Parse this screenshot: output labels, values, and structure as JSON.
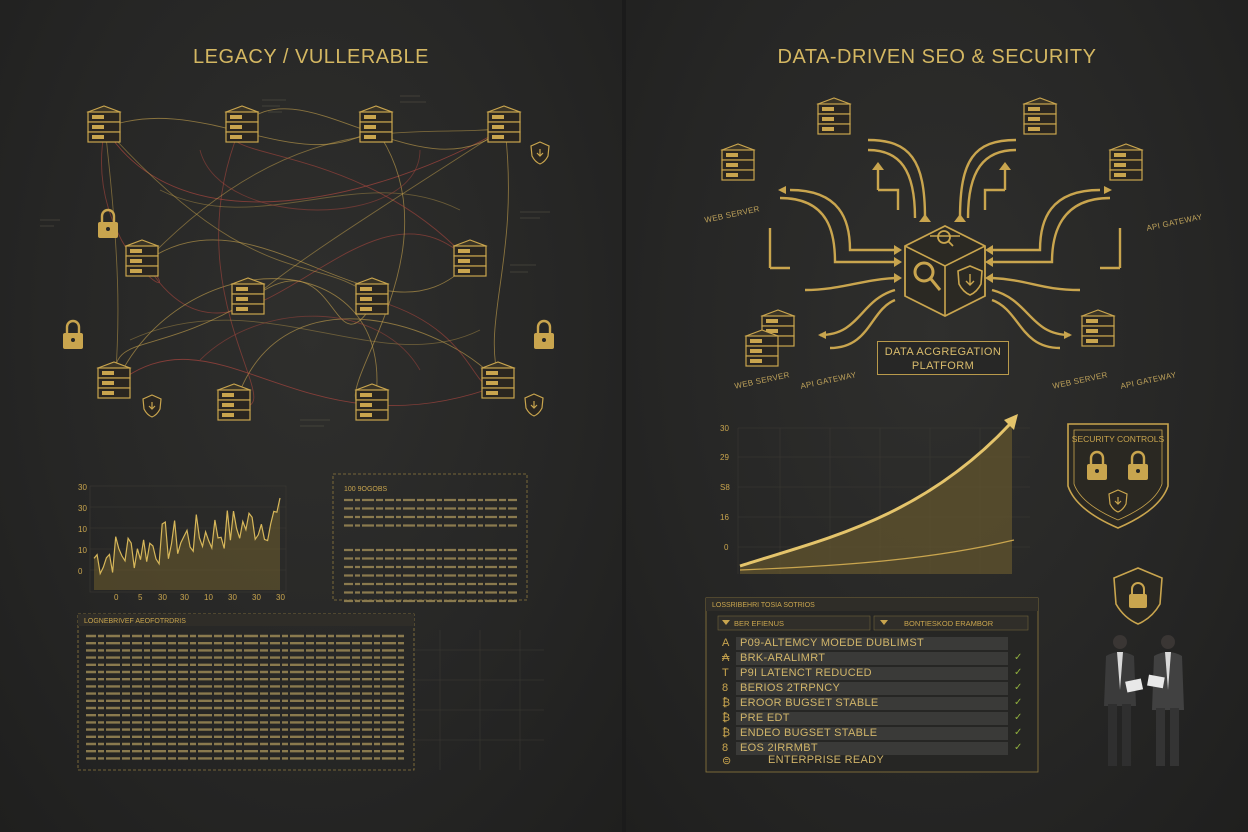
{
  "left": {
    "title": "LEGACY / VULLERABLE",
    "chart": {
      "y_ticks": [
        "30",
        "30",
        "10",
        "10",
        "0"
      ],
      "x_ticks": [
        "0",
        "5",
        "30",
        "30",
        "10",
        "30",
        "30",
        "30"
      ]
    },
    "notes_title": "100 9OGOBS",
    "log_title": "LOGNEBRIVEF AEOFOTRDRIS"
  },
  "right": {
    "title": "DATA-DRIVEN SEO & SECURITY",
    "platform_label": "DATA ACGREGATION PLATFORM",
    "chart": {
      "y_ticks": [
        "30",
        "29",
        "S8",
        "16",
        "0"
      ]
    },
    "security_controls": "SECURITY CONTROLS",
    "table_title": "LOSSRIBEHRI TOSIA SOTRIOS",
    "col_1": "BER EFIENUS",
    "col_2": "BONTIESKOD ERAMBOR",
    "rows": [
      {
        "letter": "A",
        "label": "P09-ALTEMCY MOEDE DUBLIMST",
        "check": ""
      },
      {
        "letter": "₳",
        "label": "BRK-ARALIMRT",
        "check": "✓"
      },
      {
        "letter": "T",
        "label": "P9I LATENCT REDUCED",
        "check": "✓"
      },
      {
        "letter": "8",
        "label": "BERIOS 2TRPNCY",
        "check": "✓"
      },
      {
        "letter": "₿",
        "label": "EROOR BUGSET STABLE",
        "check": "✓"
      },
      {
        "letter": "₿",
        "label": "PRE EDT",
        "check": "✓"
      },
      {
        "letter": "₿",
        "label": "ENDEO BUGSET STABLE",
        "check": "✓"
      },
      {
        "letter": "8",
        "label": "EOS 2IRRMBT",
        "check": "✓"
      },
      {
        "letter": "⊜",
        "label": "ENTERPRISE READY",
        "check": ""
      }
    ]
  },
  "colors": {
    "gold": "#c9a54e",
    "red": "#a8463e",
    "background": "#262626",
    "check_green": "#8fae3e"
  }
}
